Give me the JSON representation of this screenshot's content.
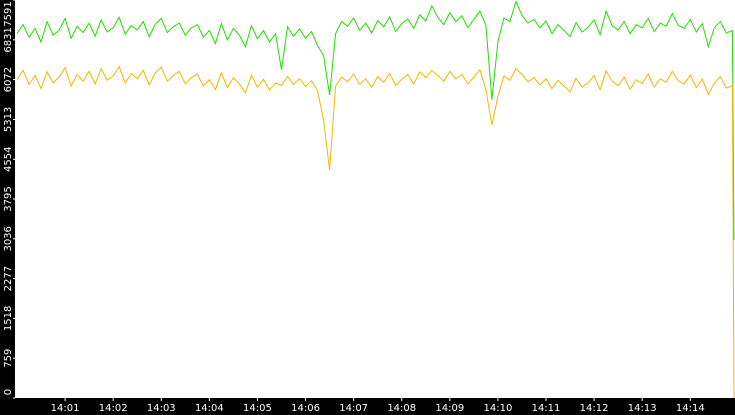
{
  "chart_data": {
    "type": "line",
    "x": [
      0,
      0.125,
      0.25,
      0.375,
      0.5,
      0.625,
      0.75,
      0.875,
      1,
      1.125,
      1.25,
      1.375,
      1.5,
      1.625,
      1.75,
      1.875,
      2,
      2.125,
      2.25,
      2.375,
      2.5,
      2.625,
      2.75,
      2.875,
      3,
      3.125,
      3.25,
      3.375,
      3.5,
      3.625,
      3.75,
      3.875,
      4,
      4.125,
      4.25,
      4.375,
      4.5,
      4.625,
      4.75,
      4.875,
      5,
      5.125,
      5.25,
      5.375,
      5.5,
      5.625,
      5.75,
      5.875,
      6,
      6.125,
      6.25,
      6.375,
      6.5,
      6.625,
      6.75,
      6.875,
      7,
      7.125,
      7.25,
      7.375,
      7.5,
      7.625,
      7.75,
      7.875,
      8,
      8.125,
      8.25,
      8.375,
      8.5,
      8.625,
      8.75,
      8.875,
      9,
      9.125,
      9.25,
      9.375,
      9.5,
      9.625,
      9.75,
      9.875,
      10,
      10.125,
      10.25,
      10.375,
      10.5,
      10.625,
      10.75,
      10.875,
      11,
      11.125,
      11.25,
      11.375,
      11.5,
      11.625,
      11.75,
      11.875,
      12,
      12.125,
      12.25,
      12.375,
      12.5,
      12.625,
      12.75,
      12.875,
      13,
      13.125,
      13.25,
      13.375,
      13.5,
      13.625,
      13.75,
      13.875,
      14,
      14.125,
      14.25,
      14.375,
      14.5,
      14.625,
      14.75,
      14.875,
      14.91
    ],
    "series": [
      {
        "color": "#22dd00",
        "values": [
          6950,
          7120,
          6880,
          7050,
          6790,
          7180,
          6920,
          7010,
          7240,
          6860,
          7090,
          6970,
          7150,
          6900,
          7210,
          6980,
          7060,
          7260,
          6940,
          7100,
          7020,
          7180,
          6890,
          7130,
          7240,
          6970,
          7080,
          7150,
          6920,
          7060,
          7120,
          6880,
          7010,
          6760,
          7140,
          6830,
          7050,
          6920,
          6700,
          7100,
          6850,
          7010,
          6790,
          6950,
          6260,
          7080,
          6900,
          7040,
          6860,
          6990,
          6720,
          6530,
          5780,
          6950,
          7180,
          7090,
          7250,
          7010,
          7150,
          6960,
          7200,
          7080,
          7270,
          6990,
          7140,
          7230,
          7050,
          7310,
          7190,
          7480,
          7260,
          7120,
          7350,
          7180,
          7290,
          7060,
          7220,
          7380,
          7110,
          5690,
          6790,
          7250,
          7180,
          7560,
          7300,
          7150,
          7220,
          7060,
          7190,
          6950,
          7120,
          7010,
          6890,
          7160,
          6980,
          7070,
          7210,
          6930,
          7380,
          7100,
          7020,
          7180,
          6950,
          7120,
          7060,
          7240,
          6990,
          7150,
          7090,
          7330,
          7110,
          7050,
          7220,
          6980,
          7140,
          6700,
          7060,
          7180,
          6960,
          7010,
          3014
        ]
      },
      {
        "color": "#f0b800",
        "values": [
          6080,
          6250,
          5980,
          6150,
          5900,
          6220,
          6010,
          6120,
          6300,
          5950,
          6170,
          6040,
          6230,
          5990,
          6280,
          6060,
          6140,
          6320,
          6010,
          6190,
          6090,
          6250,
          5970,
          6200,
          6310,
          6040,
          6150,
          6230,
          5990,
          6110,
          6180,
          5950,
          6070,
          5880,
          6200,
          5920,
          6110,
          5990,
          5820,
          6150,
          5930,
          6080,
          5870,
          6010,
          5960,
          6130,
          5980,
          6090,
          5940,
          6050,
          5860,
          5300,
          4350,
          5950,
          6120,
          6030,
          6180,
          5980,
          6090,
          5930,
          6130,
          6020,
          6190,
          5960,
          6080,
          6170,
          5990,
          6220,
          6110,
          6250,
          6150,
          6040,
          6230,
          6080,
          6170,
          5990,
          6120,
          6260,
          5880,
          5210,
          5750,
          6140,
          6060,
          6280,
          6170,
          6030,
          6110,
          5970,
          6090,
          5900,
          6060,
          5950,
          5840,
          6100,
          5930,
          6010,
          6150,
          5880,
          6240,
          6040,
          5960,
          6120,
          5890,
          6070,
          6000,
          6180,
          5930,
          6090,
          6020,
          6230,
          6050,
          5990,
          6160,
          5920,
          6080,
          5790,
          6000,
          6130,
          5910,
          5960,
          0
        ]
      }
    ],
    "xlim": [
      0,
      14.93
    ],
    "xticks": [
      {
        "value": 1,
        "label": "14:01"
      },
      {
        "value": 2,
        "label": "14:02"
      },
      {
        "value": 3,
        "label": "14:03"
      },
      {
        "value": 4,
        "label": "14:04"
      },
      {
        "value": 5,
        "label": "14:05"
      },
      {
        "value": 6,
        "label": "14:06"
      },
      {
        "value": 7,
        "label": "14:07"
      },
      {
        "value": 8,
        "label": "14:08"
      },
      {
        "value": 9,
        "label": "14:09"
      },
      {
        "value": 10,
        "label": "14:10"
      },
      {
        "value": 11,
        "label": "14:11"
      },
      {
        "value": 12,
        "label": "14:12"
      },
      {
        "value": 13,
        "label": "14:13"
      },
      {
        "value": 14,
        "label": "14:14"
      }
    ],
    "ylim": [
      0,
      7591
    ],
    "yticks": [
      0,
      759,
      1518,
      2277,
      3036,
      3795,
      4554,
      5313,
      6072,
      6831,
      7591
    ]
  }
}
